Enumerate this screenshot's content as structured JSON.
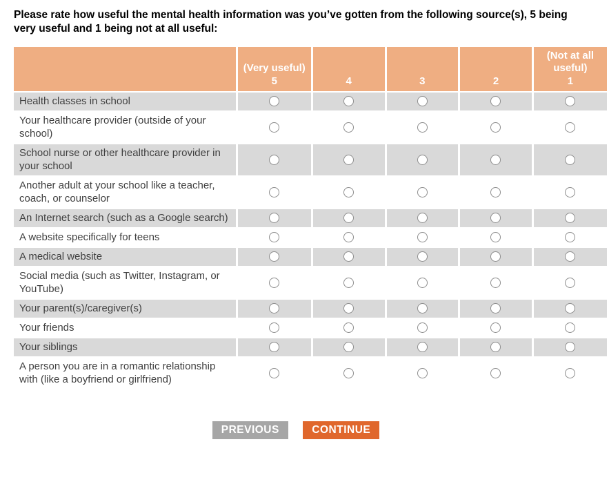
{
  "question": "Please rate how useful the mental health information was you’ve gotten from the following source(s), 5 being very useful and 1 being not at all useful:",
  "table": {
    "columns": [
      {
        "label": "(Very useful)",
        "value": "5"
      },
      {
        "label": "",
        "value": "4"
      },
      {
        "label": "",
        "value": "3"
      },
      {
        "label": "",
        "value": "2"
      },
      {
        "label": "(Not at all useful)",
        "value": "1"
      }
    ],
    "rows": [
      {
        "label": "Health classes in school"
      },
      {
        "label": "Your healthcare provider (outside of your school)"
      },
      {
        "label": "School nurse or other healthcare provider in your school"
      },
      {
        "label": "Another adult at your school like a teacher, coach, or counselor"
      },
      {
        "label": "An Internet search (such as a Google search)"
      },
      {
        "label": "A website specifically for teens"
      },
      {
        "label": "A medical website"
      },
      {
        "label": "Social media (such as Twitter, Instagram, or YouTube)"
      },
      {
        "label": "Your parent(s)/caregiver(s)"
      },
      {
        "label": "Your friends"
      },
      {
        "label": "Your siblings"
      },
      {
        "label": "A person you are in a romantic relationship with (like a boyfriend or girlfriend)"
      }
    ],
    "radio_state": "unselected"
  },
  "buttons": {
    "previous": "PREVIOUS",
    "continue": "CONTINUE"
  },
  "colors": {
    "header_bg": "#EFAE82",
    "header_text": "#FFFFFF",
    "row_alt_bg": "#D9D9D9",
    "row_bg": "#FFFFFF",
    "label_text": "#404040",
    "question_text": "#000000",
    "radio_border": "#8D8D8D",
    "previous_bg": "#A6A6A6",
    "continue_bg": "#E0672C"
  }
}
